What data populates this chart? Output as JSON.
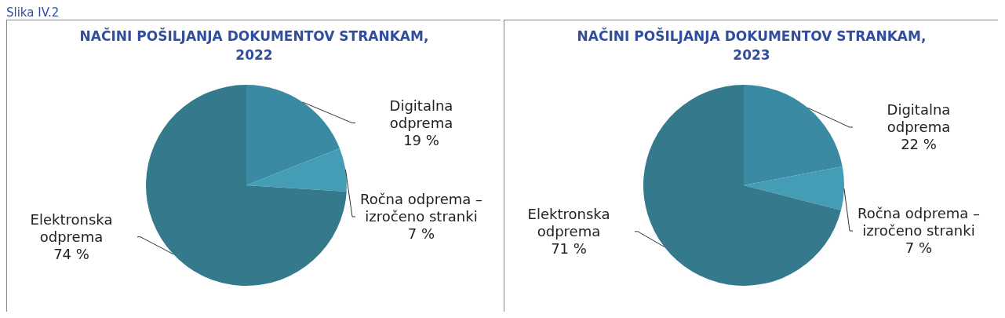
{
  "chart_data": [
    {
      "type": "pie",
      "title": "NAČINI POŠILJANJA DOKUMENTOV STRANKAM, 2022",
      "annotations": [
        "Slika IV.2"
      ],
      "categories": [
        "Digitalna odprema",
        "Ročna odprema – izročeno stranki",
        "Elektronska odprema"
      ],
      "values": [
        19,
        7,
        74
      ],
      "value_labels": [
        "19 %",
        "7 %",
        "74 %"
      ],
      "colors": [
        "#3b8aa3",
        "#449db5",
        "#347a8c"
      ],
      "legend": false
    },
    {
      "type": "pie",
      "title": "NAČINI POŠILJANJA DOKUMENTOV STRANKAM, 2023",
      "categories": [
        "Digitalna odprema",
        "Ročna odprema – izročeno stranki",
        "Elektronska odprema"
      ],
      "values": [
        22,
        7,
        71
      ],
      "value_labels": [
        "22 %",
        "7 %",
        "71 %"
      ],
      "colors": [
        "#3b8aa3",
        "#449db5",
        "#347a8c"
      ],
      "legend": false
    }
  ]
}
